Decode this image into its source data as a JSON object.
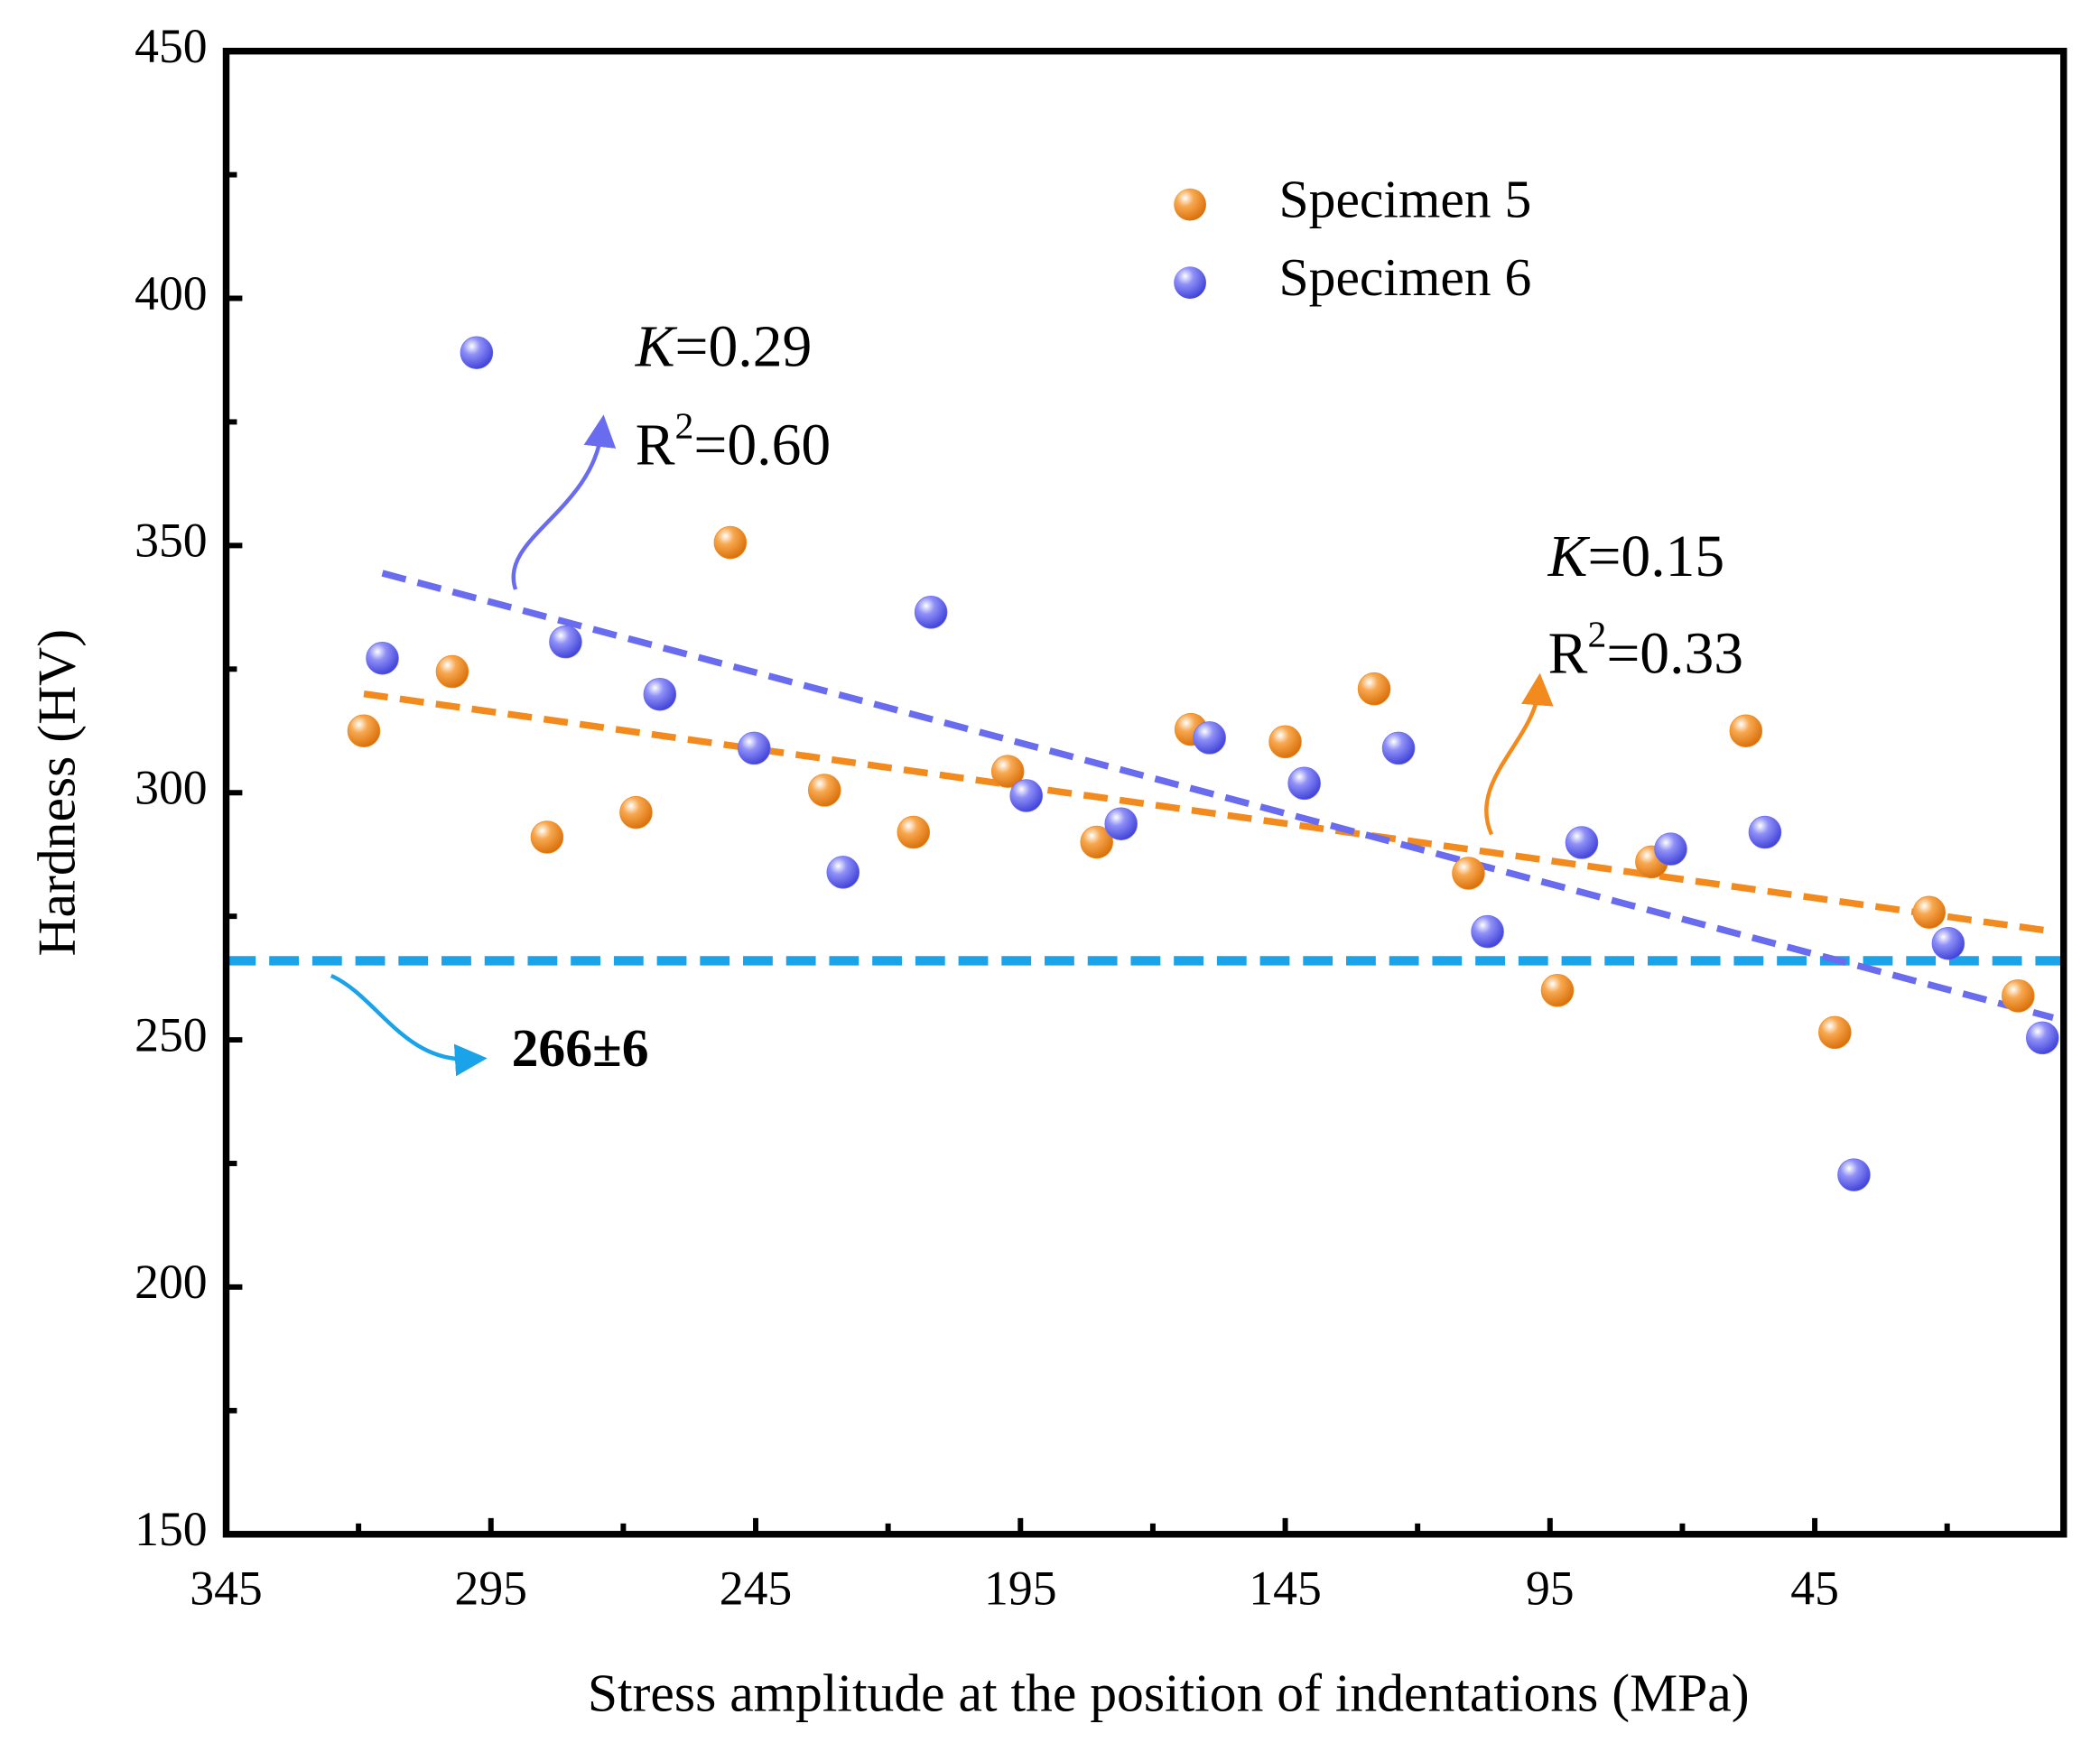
{
  "chart_data": {
    "type": "scatter",
    "x_label": "Stress amplitude at the position of indentations (MPa)",
    "y_label": "Hardness (HV)",
    "xlim": [
      345,
      -2
    ],
    "ylim": [
      150,
      450
    ],
    "xticks": [
      345,
      295,
      245,
      195,
      145,
      95,
      45
    ],
    "xminor": [
      320,
      270,
      220,
      170,
      120,
      70,
      20
    ],
    "yticks": [
      150,
      200,
      250,
      300,
      350,
      400,
      450
    ],
    "yminor": [
      175,
      225,
      275,
      325,
      375,
      425
    ],
    "legend": "upper right",
    "series": [
      {
        "name": "Specimen 5",
        "color": "#f28a1e",
        "x": [
          319.0,
          302.3,
          284.4,
          267.6,
          249.8,
          232.0,
          215.2,
          197.4,
          180.6,
          162.8,
          145.0,
          128.2,
          110.4,
          93.6,
          75.8,
          58.0,
          41.2,
          23.4,
          6.6
        ],
        "values": [
          312.5,
          324.5,
          291,
          296,
          350.6,
          300.5,
          292,
          304.3,
          290,
          312.8,
          310.3,
          321,
          283.7,
          260,
          286,
          312.5,
          251.5,
          275.8,
          258.9
        ],
        "fit_x": [
          319,
          0.5
        ],
        "fit_values": [
          320,
          272
        ]
      },
      {
        "name": "Specimen 6",
        "color": "#6a6cf0",
        "x": [
          315.5,
          297.7,
          280.9,
          263.1,
          245.3,
          228.5,
          211.9,
          193.9,
          176.0,
          159.3,
          141.4,
          123.6,
          106.8,
          89.0,
          72.2,
          54.4,
          37.6,
          19.8,
          2.0
        ],
        "values": [
          327.2,
          389,
          330.5,
          319.9,
          309,
          283.9,
          336.5,
          299.4,
          293.7,
          311.1,
          301.9,
          309,
          271.9,
          289.9,
          288.6,
          292,
          222.7,
          269.5,
          250.4
        ],
        "fit_x": [
          315.5,
          0
        ],
        "fit_values": [
          344.4,
          254.5
        ]
      }
    ],
    "reference_line": {
      "value": 266,
      "color": "#1aa3e8",
      "label": "266±6"
    },
    "annotations": [
      {
        "k": "K=0.29",
        "r2": "R2=0.60",
        "color": "#6a6cf0"
      },
      {
        "k": "K=0.15",
        "r2": "R2=0.33",
        "color": "#f28a1e"
      }
    ]
  }
}
